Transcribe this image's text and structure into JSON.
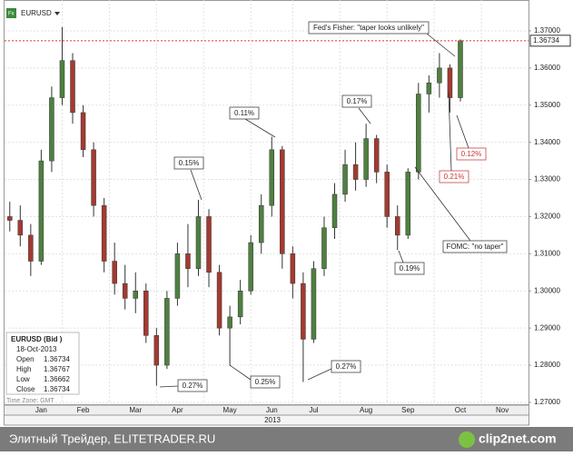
{
  "header": {
    "symbol": "EURUSD"
  },
  "chart_data": {
    "type": "candlestick",
    "categories": [
      null,
      null,
      null,
      "Jan",
      null,
      null,
      null,
      "Feb",
      null,
      null,
      null,
      null,
      "Mar",
      null,
      null,
      null,
      "Apr",
      null,
      null,
      null,
      null,
      "May",
      null,
      null,
      null,
      "Jun",
      null,
      null,
      null,
      "Jul",
      null,
      null,
      null,
      null,
      "Aug",
      null,
      null,
      null,
      "Sep",
      null,
      null,
      null,
      null,
      "Oct",
      null,
      null,
      null,
      "Nov",
      null,
      null
    ],
    "open": [
      1.32,
      1.319,
      1.315,
      1.308,
      1.335,
      1.352,
      1.362,
      1.348,
      1.338,
      1.323,
      1.308,
      1.302,
      1.298,
      1.3,
      1.288,
      1.28,
      1.298,
      1.31,
      1.306,
      1.32,
      1.305,
      1.29,
      1.293,
      1.3,
      1.313,
      1.323,
      1.338,
      1.31,
      1.302,
      1.287,
      1.306,
      1.317,
      1.326,
      1.334,
      1.33,
      1.341,
      1.332,
      1.32,
      1.315,
      1.332,
      1.353,
      1.356,
      1.36,
      1.352,
      null,
      null,
      null,
      null,
      null,
      null
    ],
    "high": [
      1.324,
      1.323,
      1.318,
      1.338,
      1.355,
      1.371,
      1.364,
      1.35,
      1.34,
      1.325,
      1.313,
      1.307,
      1.305,
      1.302,
      1.29,
      1.3,
      1.313,
      1.318,
      1.3245,
      1.322,
      1.307,
      1.296,
      1.303,
      1.315,
      1.326,
      1.3415,
      1.339,
      1.312,
      1.305,
      1.308,
      1.32,
      1.329,
      1.338,
      1.34,
      1.345,
      1.342,
      1.334,
      1.323,
      1.333,
      1.356,
      1.358,
      1.364,
      1.361,
      1.36767,
      null,
      null,
      null,
      null,
      null,
      null
    ],
    "low": [
      1.316,
      1.312,
      1.304,
      1.307,
      1.332,
      1.35,
      1.345,
      1.336,
      1.32,
      1.305,
      1.299,
      1.295,
      1.294,
      1.286,
      1.2745,
      1.279,
      1.296,
      1.301,
      1.304,
      1.301,
      1.288,
      1.28,
      1.291,
      1.299,
      1.31,
      1.32,
      1.306,
      1.298,
      1.2755,
      1.286,
      1.304,
      1.314,
      1.324,
      1.327,
      1.328,
      1.329,
      1.317,
      1.311,
      1.314,
      1.33,
      1.348,
      1.352,
      1.348,
      1.351,
      null,
      null,
      null,
      null,
      null,
      null
    ],
    "close": [
      1.319,
      1.315,
      1.308,
      1.335,
      1.352,
      1.362,
      1.348,
      1.338,
      1.323,
      1.308,
      1.302,
      1.298,
      1.3,
      1.288,
      1.28,
      1.298,
      1.31,
      1.306,
      1.32,
      1.305,
      1.29,
      1.293,
      1.3,
      1.313,
      1.323,
      1.338,
      1.31,
      1.302,
      1.287,
      1.306,
      1.317,
      1.326,
      1.334,
      1.33,
      1.341,
      1.332,
      1.32,
      1.315,
      1.332,
      1.353,
      1.356,
      1.36,
      1.352,
      1.36734,
      null,
      null,
      null,
      null,
      null,
      null
    ],
    "up_color": "#4f8040",
    "down_color": "#a33a32",
    "ylim": [
      1.2695,
      1.3783
    ],
    "yticks": [
      {
        "value": 1.27,
        "label": "1.27000"
      },
      {
        "value": 1.28,
        "label": "1.28000"
      },
      {
        "value": 1.29,
        "label": "1.29000"
      },
      {
        "value": 1.3,
        "label": "1.30000"
      },
      {
        "value": 1.31,
        "label": "1.31000"
      },
      {
        "value": 1.32,
        "label": "1.32000"
      },
      {
        "value": 1.33,
        "label": "1.33000"
      },
      {
        "value": 1.34,
        "label": "1.34000"
      },
      {
        "value": 1.35,
        "label": "1.35000"
      },
      {
        "value": 1.36,
        "label": "1.36000"
      },
      {
        "value": 1.37,
        "label": "1.37000"
      }
    ],
    "grid": true,
    "x_axis_label": "2013",
    "annotations": [
      "Fed's Fisher: \"taper looks unlikely\"",
      "0.11%",
      "0.15%",
      "0.17%",
      "0.12%",
      "0.21%",
      "FOMC: \"no taper\"",
      "0.19%",
      "0.27%",
      "0.25%",
      "0.27%"
    ],
    "info": {
      "title": "EURUSD (Bid )",
      "date": "18-Oct-2013",
      "open_label": "Open",
      "open": 1.36734,
      "high_label": "High",
      "high": 1.36767,
      "low_label": "Low",
      "low": 1.36662,
      "close_label": "Close",
      "close": 1.36734
    },
    "time_zone": "Time Zone: GMT"
  },
  "footer": {
    "site": "Элитный Трейдер, ELITETRADER.RU",
    "logo": "clip2net.com"
  }
}
